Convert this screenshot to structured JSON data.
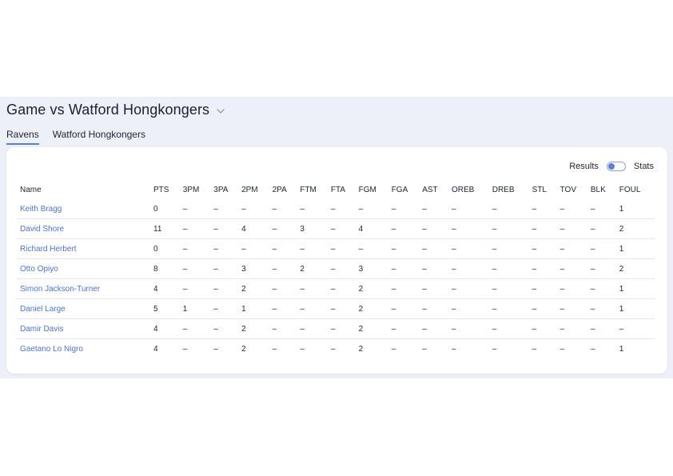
{
  "header": {
    "title": "Game vs Watford Hongkongers",
    "chevron_icon": "chevron-down-icon"
  },
  "tabs": [
    {
      "label": "Ravens",
      "active": true
    },
    {
      "label": "Watford Hongkongers",
      "active": false
    }
  ],
  "view_toggle": {
    "left_label": "Results",
    "right_label": "Stats",
    "accent": "#5b7fd6"
  },
  "table": {
    "columns": [
      "Name",
      "PTS",
      "3PM",
      "3PA",
      "2PM",
      "2PA",
      "FTM",
      "FTA",
      "FGM",
      "FGA",
      "AST",
      "OREB",
      "DREB",
      "STL",
      "TOV",
      "BLK",
      "FOUL"
    ],
    "rows": [
      [
        "Keith Bragg",
        "0",
        "–",
        "–",
        "–",
        "–",
        "–",
        "–",
        "–",
        "–",
        "–",
        "–",
        "–",
        "–",
        "–",
        "–",
        "1"
      ],
      [
        "David Shore",
        "11",
        "–",
        "–",
        "4",
        "–",
        "3",
        "–",
        "4",
        "–",
        "–",
        "–",
        "–",
        "–",
        "–",
        "–",
        "2"
      ],
      [
        "Richard Herbert",
        "0",
        "–",
        "–",
        "–",
        "–",
        "–",
        "–",
        "–",
        "–",
        "–",
        "–",
        "–",
        "–",
        "–",
        "–",
        "1"
      ],
      [
        "Otto Opiyo",
        "8",
        "–",
        "–",
        "3",
        "–",
        "2",
        "–",
        "3",
        "–",
        "–",
        "–",
        "–",
        "–",
        "–",
        "–",
        "2"
      ],
      [
        "Simon Jackson-Turner",
        "4",
        "–",
        "–",
        "2",
        "–",
        "–",
        "–",
        "2",
        "–",
        "–",
        "–",
        "–",
        "–",
        "–",
        "–",
        "1"
      ],
      [
        "Daniel Large",
        "5",
        "1",
        "–",
        "1",
        "–",
        "–",
        "–",
        "2",
        "–",
        "–",
        "–",
        "–",
        "–",
        "–",
        "–",
        "1"
      ],
      [
        "Damir Davis",
        "4",
        "–",
        "–",
        "2",
        "–",
        "–",
        "–",
        "2",
        "–",
        "–",
        "–",
        "–",
        "–",
        "–",
        "–",
        "–"
      ],
      [
        "Gaetano Lo Nigro",
        "4",
        "–",
        "–",
        "2",
        "–",
        "–",
        "–",
        "2",
        "–",
        "–",
        "–",
        "–",
        "–",
        "–",
        "–",
        "1"
      ]
    ]
  }
}
